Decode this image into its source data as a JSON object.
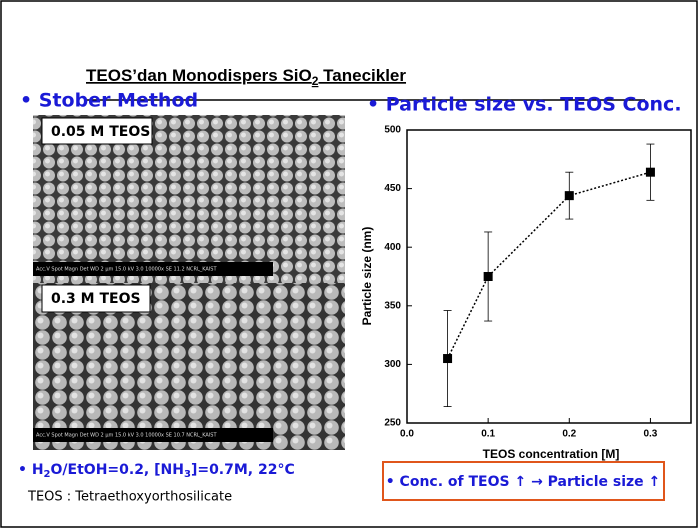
{
  "slide": {
    "title": {
      "main": "TEOS’dan Monodispers SiO",
      "sub": "2",
      "rest": " Tanecikler"
    },
    "left_heading": "• Stober Method",
    "image1_label": "0.05 M TEOS",
    "image1_bar": "Acc.V  Spot Magn   Det  WD         2 μm   15.0 kV 3.0  10000x  SE  11.2  NCRL_KAIST",
    "image2_label": "0.3 M TEOS",
    "image2_bar": "Acc.V  Spot Magn   Det  WD         2 μm   15.0 kV 3.0  10000x  SE  10.7  NCRL_KAIST",
    "conditions": [
      "• H",
      "2",
      "O/EtOH=0.2, [NH",
      "3",
      "]=0.7M, 22°C"
    ],
    "teos_note": "TEOS : Tetraethoxyorthosilicate",
    "conclusion": "• Conc. of TEOS ↑  → Particle size ↑"
  },
  "chart_data": {
    "type": "line",
    "title": "• Particle size vs. TEOS Conc.",
    "x_label": "TEOS concentration [M]",
    "y_label": "Particle size (nm)",
    "x": [
      0.05,
      0.1,
      0.2,
      0.3
    ],
    "values": [
      305,
      375,
      444,
      464
    ],
    "errors": [
      41,
      38,
      20,
      24
    ],
    "color": "#000000",
    "xlim": [
      0,
      0.35
    ],
    "xticks": [
      {
        "value": 0,
        "label": "0.0"
      },
      0.1,
      0.2,
      0.3
    ],
    "ylim": [
      250,
      500
    ],
    "yticks": [
      250,
      300,
      350,
      400,
      450,
      500
    ]
  }
}
